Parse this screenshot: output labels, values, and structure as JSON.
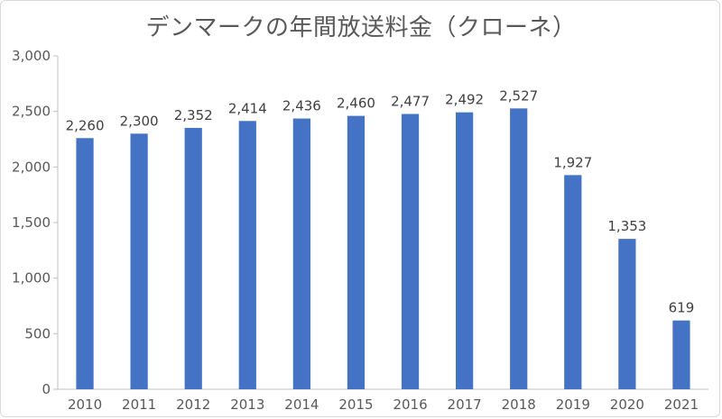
{
  "chart_data": {
    "type": "bar",
    "title": "デンマークの年間放送料金（クローネ）",
    "categories": [
      "2010",
      "2011",
      "2012",
      "2013",
      "2014",
      "2015",
      "2016",
      "2017",
      "2018",
      "2019",
      "2020",
      "2021"
    ],
    "values": [
      2260,
      2300,
      2352,
      2414,
      2436,
      2460,
      2477,
      2492,
      2527,
      1927,
      1353,
      619
    ],
    "data_labels": [
      "2,260",
      "2,300",
      "2,352",
      "2,414",
      "2,436",
      "2,460",
      "2,477",
      "2,492",
      "2,527",
      "1,927",
      "1,353",
      "619"
    ],
    "y_ticks": [
      0,
      500,
      1000,
      1500,
      2000,
      2500,
      3000
    ],
    "y_tick_labels": [
      "0",
      "500",
      "1,000",
      "1,500",
      "2,000",
      "2,500",
      "3,000"
    ],
    "ylim": [
      0,
      3000
    ],
    "xlabel": "",
    "ylabel": "",
    "bar_color": "#4472c4",
    "grid": false
  }
}
